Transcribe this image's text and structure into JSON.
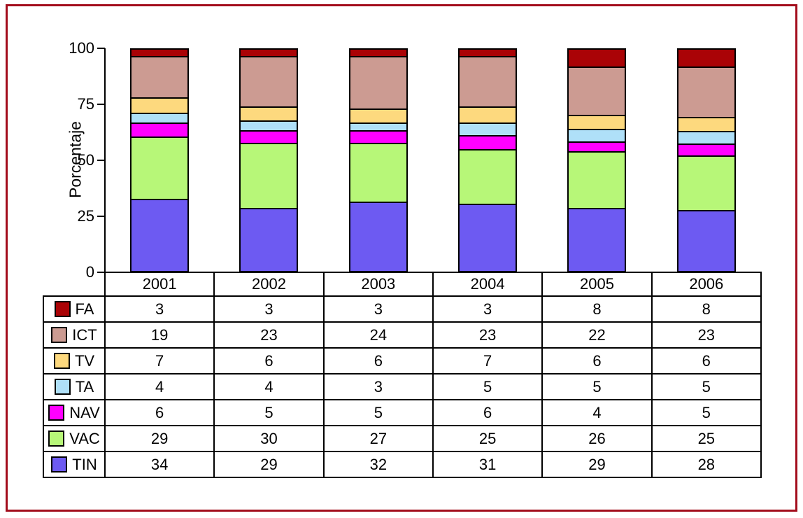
{
  "frame": {
    "border_color": "#A30D1C"
  },
  "chart_data": {
    "type": "bar",
    "variant": "stacked-column-100",
    "title": "",
    "ylabel": "Porcentaje",
    "xlabel": "",
    "ylim": [
      0,
      100
    ],
    "yticks": [
      0,
      25,
      50,
      75,
      100
    ],
    "grid": false,
    "legend_position": "table-rows-left",
    "categories": [
      "2001",
      "2002",
      "2003",
      "2004",
      "2005",
      "2006"
    ],
    "series": [
      {
        "name": "FA",
        "color": "#AA0306",
        "values": [
          3,
          3,
          3,
          3,
          8,
          8
        ]
      },
      {
        "name": "ICT",
        "color": "#CC9B92",
        "values": [
          19,
          23,
          24,
          23,
          22,
          23
        ]
      },
      {
        "name": "TV",
        "color": "#FDD97E",
        "values": [
          7,
          6,
          6,
          7,
          6,
          6
        ]
      },
      {
        "name": "TA",
        "color": "#AFE0F8",
        "values": [
          4,
          4,
          3,
          5,
          5,
          5
        ]
      },
      {
        "name": "NAV",
        "color": "#FF00FF",
        "values": [
          6,
          5,
          5,
          6,
          4,
          5
        ]
      },
      {
        "name": "VAC",
        "color": "#B7F778",
        "values": [
          29,
          30,
          27,
          25,
          26,
          25
        ]
      },
      {
        "name": "TIN",
        "color": "#6D5AF2",
        "values": [
          34,
          29,
          32,
          31,
          29,
          28
        ]
      }
    ],
    "stack_order_bottom_to_top": [
      "TIN",
      "VAC",
      "NAV",
      "TA",
      "TV",
      "ICT",
      "FA"
    ]
  }
}
